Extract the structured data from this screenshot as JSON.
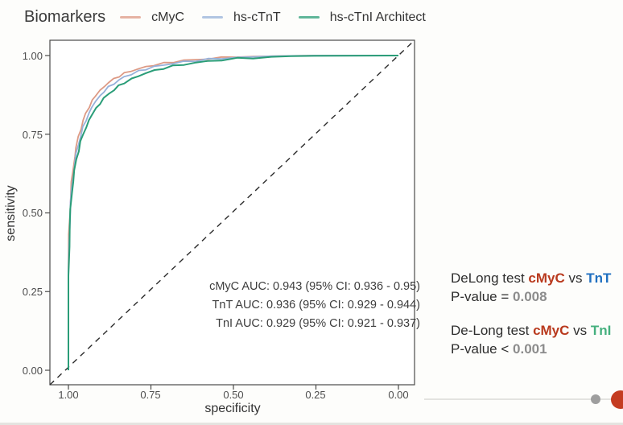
{
  "legend": {
    "title": "Biomarkers",
    "items": [
      {
        "label": "cMyC",
        "color": "#dd9a85"
      },
      {
        "label": "hs-cTnT",
        "color": "#97b1da"
      },
      {
        "label": "hs-cTnI Architect",
        "color": "#2a9d78"
      }
    ]
  },
  "chart_data": {
    "type": "line",
    "subtype": "roc-curve",
    "xlabel": "specificity",
    "ylabel": "sensitivity",
    "x_axis_reversed": true,
    "xlim": [
      1.0,
      0.0
    ],
    "ylim": [
      0.0,
      1.0
    ],
    "grid": false,
    "diagonal_reference_line": "dashed black from (specificity 1, sensitivity 0) to (specificity 0, sensitivity 1)",
    "x_tick_labels": [
      "1.00",
      "0.75",
      "0.50",
      "0.25",
      "0.00"
    ],
    "y_tick_labels": [
      "0.00",
      "0.25",
      "0.50",
      "0.75",
      "1.00"
    ],
    "series": [
      {
        "name": "cMyC",
        "color": "#dd9a85",
        "auc": 0.943,
        "ci": "0.936 - 0.95",
        "points": [
          [
            1.0,
            0.0
          ],
          [
            1.0,
            0.33
          ],
          [
            0.998,
            0.43
          ],
          [
            0.996,
            0.5
          ],
          [
            0.993,
            0.555
          ],
          [
            0.99,
            0.6
          ],
          [
            0.986,
            0.64
          ],
          [
            0.981,
            0.678
          ],
          [
            0.976,
            0.71
          ],
          [
            0.97,
            0.74
          ],
          [
            0.963,
            0.768
          ],
          [
            0.955,
            0.793
          ],
          [
            0.947,
            0.816
          ],
          [
            0.938,
            0.837
          ],
          [
            0.928,
            0.856
          ],
          [
            0.917,
            0.873
          ],
          [
            0.905,
            0.888
          ],
          [
            0.892,
            0.902
          ],
          [
            0.878,
            0.914
          ],
          [
            0.863,
            0.925
          ],
          [
            0.847,
            0.935
          ],
          [
            0.83,
            0.943
          ],
          [
            0.81,
            0.951
          ],
          [
            0.788,
            0.958
          ],
          [
            0.765,
            0.964
          ],
          [
            0.74,
            0.97
          ],
          [
            0.712,
            0.975
          ],
          [
            0.682,
            0.98
          ],
          [
            0.65,
            0.984
          ],
          [
            0.615,
            0.987
          ],
          [
            0.577,
            0.99
          ],
          [
            0.535,
            0.993
          ],
          [
            0.49,
            0.995
          ],
          [
            0.44,
            0.997
          ],
          [
            0.385,
            0.998
          ],
          [
            0.325,
            0.999
          ],
          [
            0.255,
            1.0
          ],
          [
            0.0,
            1.0
          ]
        ]
      },
      {
        "name": "hs-cTnT",
        "color": "#97b1da",
        "auc": 0.936,
        "ci": "0.929 - 0.944",
        "points": [
          [
            1.0,
            0.0
          ],
          [
            1.0,
            0.31
          ],
          [
            0.998,
            0.41
          ],
          [
            0.996,
            0.478
          ],
          [
            0.993,
            0.532
          ],
          [
            0.99,
            0.577
          ],
          [
            0.986,
            0.617
          ],
          [
            0.981,
            0.655
          ],
          [
            0.976,
            0.688
          ],
          [
            0.97,
            0.718
          ],
          [
            0.963,
            0.746
          ],
          [
            0.955,
            0.772
          ],
          [
            0.947,
            0.795
          ],
          [
            0.938,
            0.817
          ],
          [
            0.928,
            0.837
          ],
          [
            0.917,
            0.855
          ],
          [
            0.905,
            0.871
          ],
          [
            0.892,
            0.886
          ],
          [
            0.878,
            0.899
          ],
          [
            0.863,
            0.911
          ],
          [
            0.847,
            0.922
          ],
          [
            0.83,
            0.932
          ],
          [
            0.81,
            0.941
          ],
          [
            0.788,
            0.95
          ],
          [
            0.765,
            0.957
          ],
          [
            0.74,
            0.964
          ],
          [
            0.712,
            0.97
          ],
          [
            0.682,
            0.975
          ],
          [
            0.65,
            0.98
          ],
          [
            0.615,
            0.984
          ],
          [
            0.577,
            0.988
          ],
          [
            0.535,
            0.991
          ],
          [
            0.49,
            0.994
          ],
          [
            0.44,
            0.996
          ],
          [
            0.385,
            0.998
          ],
          [
            0.325,
            0.999
          ],
          [
            0.255,
            1.0
          ],
          [
            0.0,
            1.0
          ]
        ]
      },
      {
        "name": "hs-cTnI Architect",
        "color": "#2a9d78",
        "auc": 0.929,
        "ci": "0.921 - 0.937",
        "points": [
          [
            1.0,
            0.0
          ],
          [
            1.0,
            0.3
          ],
          [
            0.998,
            0.395
          ],
          [
            0.996,
            0.46
          ],
          [
            0.993,
            0.515
          ],
          [
            0.99,
            0.56
          ],
          [
            0.986,
            0.6
          ],
          [
            0.981,
            0.637
          ],
          [
            0.976,
            0.668
          ],
          [
            0.97,
            0.698
          ],
          [
            0.963,
            0.725
          ],
          [
            0.955,
            0.75
          ],
          [
            0.947,
            0.772
          ],
          [
            0.938,
            0.793
          ],
          [
            0.928,
            0.813
          ],
          [
            0.917,
            0.831
          ],
          [
            0.905,
            0.848
          ],
          [
            0.892,
            0.864
          ],
          [
            0.878,
            0.878
          ],
          [
            0.863,
            0.891
          ],
          [
            0.847,
            0.903
          ],
          [
            0.83,
            0.914
          ],
          [
            0.81,
            0.925
          ],
          [
            0.788,
            0.935
          ],
          [
            0.765,
            0.944
          ],
          [
            0.74,
            0.952
          ],
          [
            0.712,
            0.96
          ],
          [
            0.682,
            0.966
          ],
          [
            0.65,
            0.972
          ],
          [
            0.615,
            0.977
          ],
          [
            0.577,
            0.982
          ],
          [
            0.535,
            0.986
          ],
          [
            0.49,
            0.99
          ],
          [
            0.44,
            0.993
          ],
          [
            0.385,
            0.996
          ],
          [
            0.325,
            0.998
          ],
          [
            0.255,
            0.999
          ],
          [
            0.0,
            1.0
          ]
        ]
      }
    ],
    "annotations": [
      "cMyC AUC: 0.943 (95% CI: 0.936 - 0.95)",
      "TnT AUC: 0.936 (95% CI: 0.929 - 0.944)",
      "TnI AUC: 0.929 (95% CI: 0.921 - 0.937)"
    ]
  },
  "stats_panel": {
    "test1": {
      "prefix": "DeLong test ",
      "biomarker_a": "cMyC",
      "vs": " vs ",
      "biomarker_b": "TnT",
      "pvalue_prefix": "P-value = ",
      "pvalue": "0.008",
      "color_a": "#b93a1e",
      "color_b": "#1f6fc0"
    },
    "test2": {
      "prefix": "De-Long test ",
      "biomarker_a": "cMyC",
      "vs": " vs ",
      "biomarker_b": "TnI",
      "pvalue_prefix": "P-value < ",
      "pvalue": "0.001",
      "color_a": "#b93a1e",
      "color_b": "#45b07e"
    }
  },
  "player": {
    "dot_color": "#9e9e9e",
    "playhead_color": "#c43c21"
  }
}
